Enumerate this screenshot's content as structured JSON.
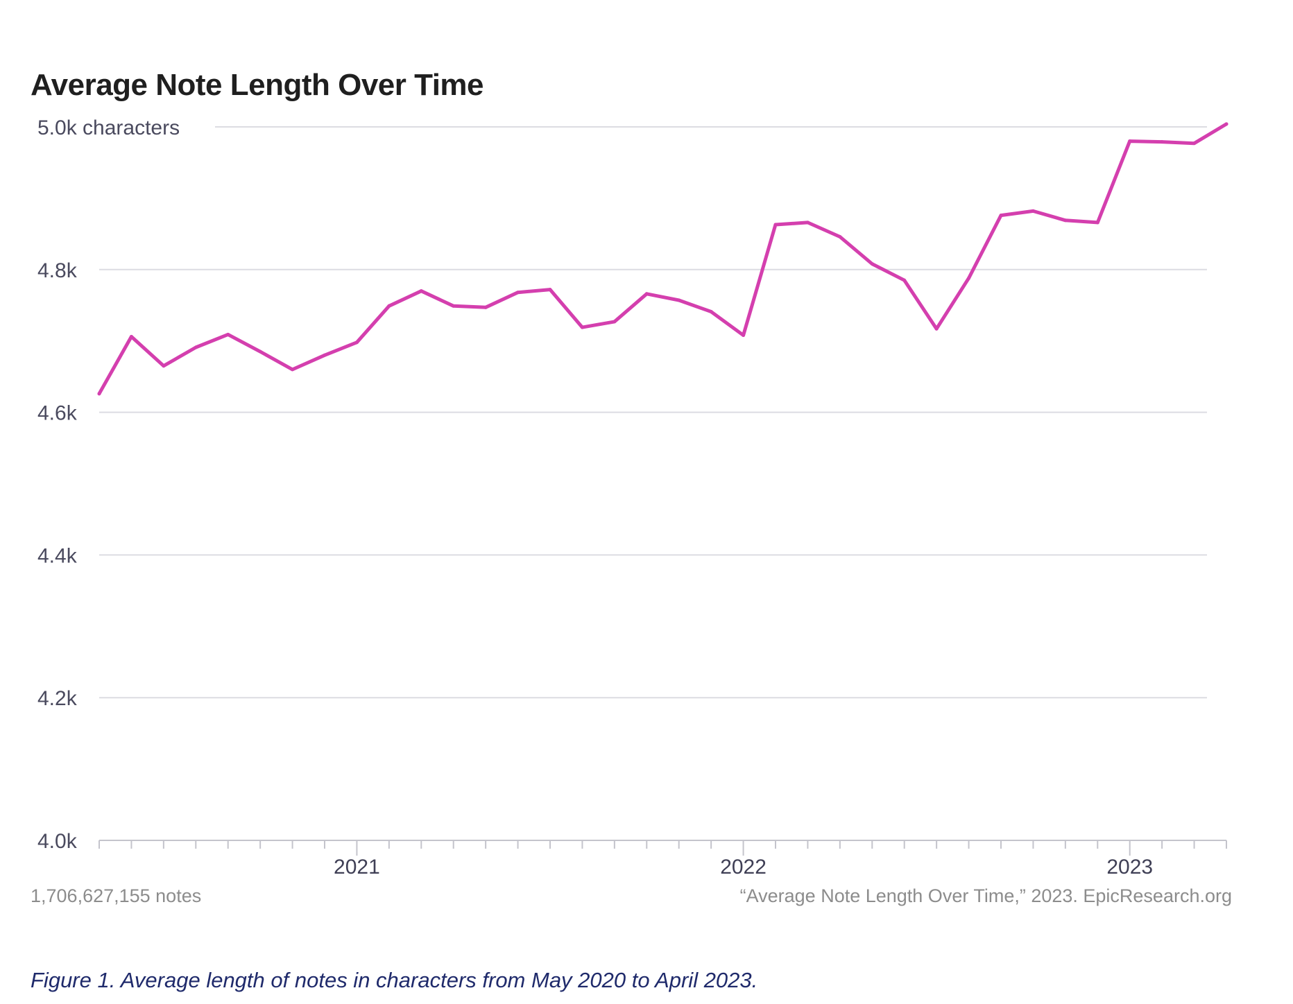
{
  "title": "Average Note Length Over Time",
  "footer": {
    "count": "1,706,627,155 notes",
    "source": "“Average Note Length Over Time,” 2023. EpicResearch.org"
  },
  "caption": "Figure 1. Average length of notes in characters from May 2020 to April 2023.",
  "colors": {
    "line": "#d43fae",
    "grid": "#dcdce2",
    "tick_text": "#4a4a5e"
  },
  "chart_data": {
    "type": "line",
    "title": "Average Note Length Over Time",
    "xlabel": "",
    "ylabel": "",
    "ylim": [
      4000,
      5000
    ],
    "grid": true,
    "y_ticks": [
      {
        "value": 4000,
        "label": "4.0k"
      },
      {
        "value": 4200,
        "label": "4.2k"
      },
      {
        "value": 4400,
        "label": "4.4k"
      },
      {
        "value": 4600,
        "label": "4.6k"
      },
      {
        "value": 4800,
        "label": "4.8k"
      },
      {
        "value": 5000,
        "label": "5.0k characters"
      }
    ],
    "x_ticks": [
      {
        "value": "2021-01",
        "label": "2021"
      },
      {
        "value": "2022-01",
        "label": "2022"
      },
      {
        "value": "2023-01",
        "label": "2023"
      }
    ],
    "x_minor_ticks": [
      "2020-05",
      "2020-06",
      "2020-07",
      "2020-08",
      "2020-09",
      "2020-10",
      "2020-11",
      "2020-12",
      "2021-01",
      "2021-02",
      "2021-03",
      "2021-04",
      "2021-05",
      "2021-06",
      "2021-07",
      "2021-08",
      "2021-09",
      "2021-10",
      "2021-11",
      "2021-12",
      "2022-01",
      "2022-02",
      "2022-03",
      "2022-04",
      "2022-05",
      "2022-06",
      "2022-07",
      "2022-08",
      "2022-09",
      "2022-10",
      "2022-11",
      "2022-12",
      "2023-01",
      "2023-02",
      "2023-03",
      "2023-04"
    ],
    "series": [
      {
        "x": [
          "2020-05",
          "2020-06",
          "2020-07",
          "2020-08",
          "2020-09",
          "2020-10",
          "2020-11",
          "2020-12",
          "2021-01",
          "2021-02",
          "2021-03",
          "2021-04",
          "2021-05",
          "2021-06",
          "2021-07",
          "2021-08",
          "2021-09",
          "2021-10",
          "2021-11",
          "2021-12",
          "2022-01",
          "2022-02",
          "2022-03",
          "2022-04",
          "2022-05",
          "2022-06",
          "2022-07",
          "2022-08",
          "2022-09",
          "2022-10",
          "2022-11",
          "2022-12",
          "2023-01",
          "2023-02",
          "2023-03",
          "2023-04"
        ],
        "values": [
          4626,
          4706,
          4665,
          4691,
          4709,
          4685,
          4660,
          4680,
          4698,
          4749,
          4770,
          4749,
          4747,
          4768,
          4772,
          4719,
          4727,
          4766,
          4757,
          4741,
          4708,
          4863,
          4866,
          4846,
          4808,
          4785,
          4717,
          4788,
          4876,
          4882,
          4869,
          4866,
          4980,
          4979,
          4977,
          5004
        ]
      }
    ]
  }
}
